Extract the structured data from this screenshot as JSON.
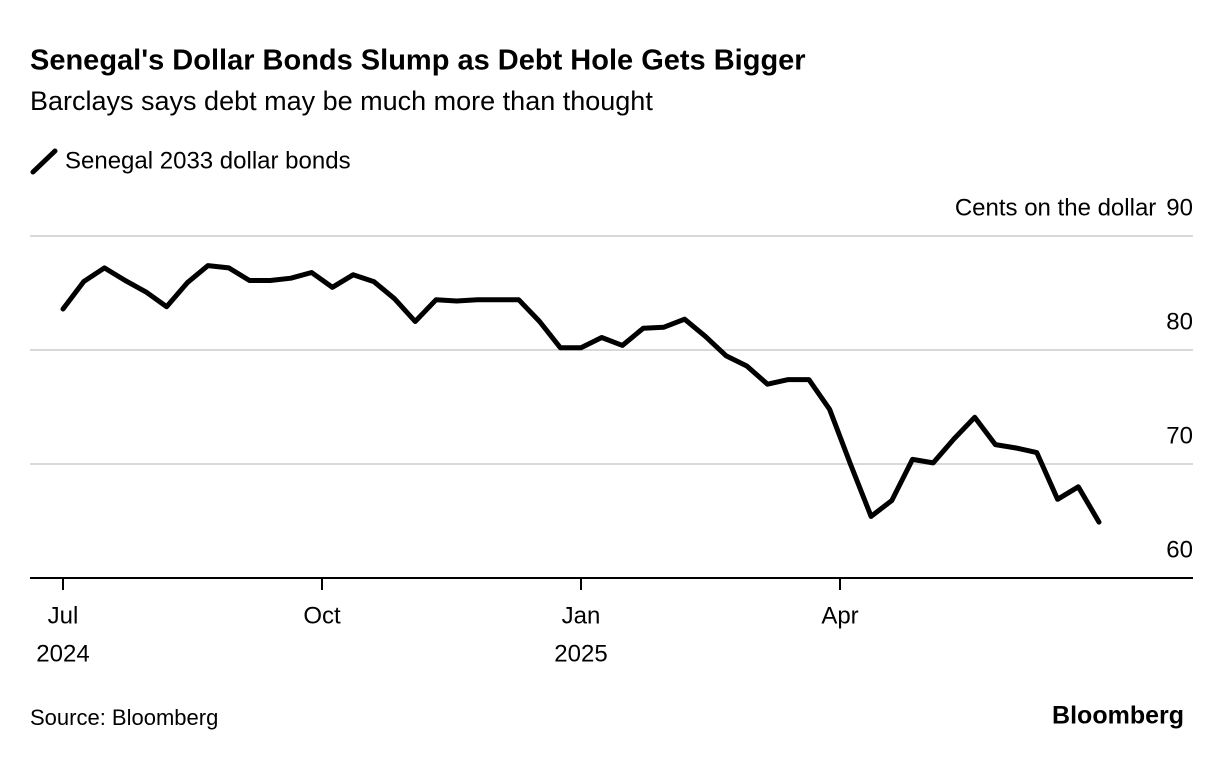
{
  "chart_data": {
    "type": "line",
    "title": "Senegal's Dollar Bonds Slump as Debt Hole Gets Bigger",
    "subtitle": "Barclays says debt may be much more than thought",
    "y_axis_label": "Cents on the dollar",
    "source": "Source: Bloomberg",
    "brand": "Bloomberg",
    "xlim": [
      "2024-07",
      "2025-07"
    ],
    "xticks": [
      {
        "value": "2024-07",
        "label": [
          "Jul",
          "2024"
        ]
      },
      {
        "value": "2024-10",
        "label": [
          "Oct"
        ]
      },
      {
        "value": "2025-01",
        "label": [
          "Jan",
          "2025"
        ]
      },
      {
        "value": "2025-04",
        "label": [
          "Apr"
        ]
      }
    ],
    "ylim": [
      60,
      90
    ],
    "yticks": [
      60,
      70,
      80,
      90
    ],
    "grid": true,
    "series": [
      {
        "name": "Senegal 2033 dollar bonds",
        "color": "#000000",
        "values": [
          83.6,
          86.0,
          87.2,
          86.1,
          85.1,
          83.8,
          85.9,
          87.4,
          87.2,
          86.1,
          86.1,
          86.3,
          86.8,
          85.5,
          86.6,
          86.0,
          84.5,
          82.5,
          84.4,
          84.3,
          84.4,
          84.4,
          84.4,
          82.5,
          80.2,
          80.2,
          81.1,
          80.4,
          81.9,
          82.0,
          82.7,
          81.2,
          79.5,
          78.6,
          77.0,
          77.4,
          77.4,
          74.8,
          70.0,
          65.4,
          66.8,
          70.4,
          70.1,
          72.2,
          74.1,
          71.7,
          71.4,
          71.0,
          66.9,
          68.0,
          64.9
        ]
      }
    ]
  }
}
